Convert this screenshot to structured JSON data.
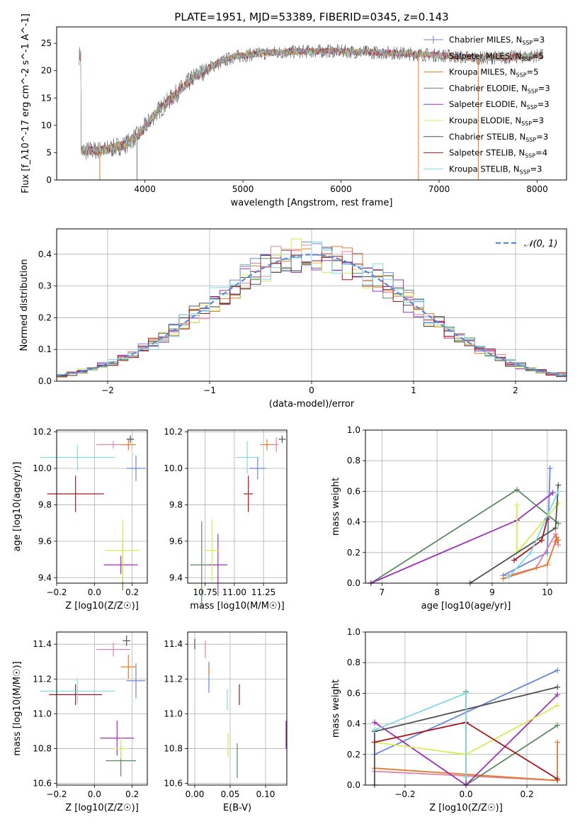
{
  "figure": {
    "title": "PLATE=1951, MJD=53389, FIBERID=0345, z=0.143"
  },
  "models": [
    {
      "name": "Chabrier MILES, N$_{SSP}$=3",
      "label": "Chabrier MILES, N",
      "nssp": "=3",
      "color": "#6a86d8"
    },
    {
      "name": "Salpeter MILES, N$_{SSP}$=5",
      "label": "Salpeter MILES, N",
      "nssp": "=5",
      "color": "#e47fa0"
    },
    {
      "name": "Kroupa MILES, N$_{SSP}$=5",
      "label": "Kroupa MILES, N",
      "nssp": "=5",
      "color": "#e07b2c"
    },
    {
      "name": "Chabrier ELODIE, N$_{SSP}$=3",
      "label": "Chabrier ELODIE, N",
      "nssp": "=3",
      "color": "#5a8a62"
    },
    {
      "name": "Salpeter ELODIE, N$_{SSP}$=3",
      "label": "Salpeter ELODIE, N",
      "nssp": "=3",
      "color": "#9b30b8"
    },
    {
      "name": "Kroupa ELODIE, N$_{SSP}$=3",
      "label": "Kroupa ELODIE, N",
      "nssp": "=3",
      "color": "#d6ec55"
    },
    {
      "name": "Chabrier STELIB, N$_{SSP}$=3",
      "label": "Chabrier STELIB, N",
      "nssp": "=3",
      "color": "#505050"
    },
    {
      "name": "Salpeter STELIB, N$_{SSP}$=4",
      "label": "Salpeter STELIB, N",
      "nssp": "=4",
      "color": "#a8161a"
    },
    {
      "name": "Kroupa STELIB, N$_{SSP}$=3",
      "label": "Kroupa STELIB, N",
      "nssp": "=3",
      "color": "#7fd8e3"
    }
  ],
  "chart_data": [
    {
      "id": "spectrum",
      "type": "line",
      "title": "PLATE=1951, MJD=53389, FIBERID=0345, z=0.143",
      "xlabel": "wavelength [Angstrom, rest frame]",
      "ylabel": "Flux [f_λ10^-17 erg cm^-2 s^-1 A^-1]",
      "xlim": [
        3100,
        8300
      ],
      "ylim": [
        0,
        28
      ],
      "xticks": [
        "4000",
        "5000",
        "6000",
        "7000",
        "8000"
      ],
      "yticks": [
        "0",
        "5",
        "10",
        "15",
        "20",
        "25"
      ],
      "grid": false,
      "legend": "top-right",
      "continuum_points": [
        [
          3350,
          5.3
        ],
        [
          3600,
          5.5
        ],
        [
          3800,
          6.5
        ],
        [
          3950,
          8.5
        ],
        [
          4100,
          12
        ],
        [
          4300,
          15.5
        ],
        [
          4500,
          18.8
        ],
        [
          4700,
          21
        ],
        [
          4900,
          22.5
        ],
        [
          5100,
          23
        ],
        [
          5300,
          23.3
        ],
        [
          5600,
          23.5
        ],
        [
          5900,
          23.6
        ],
        [
          6200,
          23.4
        ],
        [
          6600,
          23.2
        ],
        [
          7000,
          22.8
        ],
        [
          7400,
          22.3
        ],
        [
          7800,
          22.5
        ],
        [
          8050,
          22.8
        ]
      ]
    },
    {
      "id": "residuals",
      "type": "line",
      "xlabel": "(data-model)/error",
      "ylabel": "Normed distribution",
      "xlim": [
        -2.5,
        2.5
      ],
      "ylim": [
        0,
        0.48
      ],
      "xticks": [
        "−2",
        "−1",
        "0",
        "1",
        "2"
      ],
      "yticks": [
        "0.0",
        "0.1",
        "0.2",
        "0.3",
        "0.4"
      ],
      "grid": true,
      "legend": "top-right",
      "reference_label": "𝒩(0, 1)"
    },
    {
      "id": "age-vs-Z",
      "type": "scatter",
      "xlabel": "Z [log10(Z/Z☉)]",
      "ylabel": "age  [log10(age/yr)]",
      "xlim": [
        -0.2,
        0.28
      ],
      "ylim": [
        9.37,
        10.21
      ],
      "xticks": [
        "−0.2",
        "0.0",
        "0.2"
      ],
      "yticks": [
        "9.4",
        "9.6",
        "9.8",
        "10.0",
        "10.2"
      ],
      "grid": true,
      "points": [
        {
          "x": 0.22,
          "y": 10.0,
          "xerr": 0.05,
          "yerr": 0.07
        },
        {
          "x": 0.1,
          "y": 10.13,
          "xerr": 0.09,
          "yerr": 0.02
        },
        {
          "x": 0.18,
          "y": 10.13,
          "xerr": 0.04,
          "yerr": 0.03
        },
        {
          "x": 0.15,
          "y": 9.47,
          "xerr": 0.01,
          "yerr": 0.14
        },
        {
          "x": 0.14,
          "y": 9.47,
          "xerr": 0.09,
          "yerr": 0.05
        },
        {
          "x": 0.15,
          "y": 9.55,
          "xerr": 0.09,
          "yerr": 0.17
        },
        {
          "x": 0.19,
          "y": 10.16,
          "xerr": 0.02,
          "yerr": 0.02
        },
        {
          "x": -0.1,
          "y": 9.86,
          "xerr": 0.15,
          "yerr": 0.1
        },
        {
          "x": -0.09,
          "y": 10.06,
          "xerr": 0.2,
          "yerr": 0.07
        }
      ]
    },
    {
      "id": "age-vs-mass",
      "type": "scatter",
      "xlabel": "mass [log10(M/M☉)]",
      "ylabel": "",
      "xlim": [
        10.6,
        11.45
      ],
      "ylim": [
        9.37,
        10.21
      ],
      "xticks": [
        "10.75",
        "11.00",
        "11.25"
      ],
      "yticks": [
        "9.4",
        "9.6",
        "9.8",
        "10.0",
        "10.2"
      ],
      "grid": true,
      "points": [
        {
          "x": 11.2,
          "y": 10.0,
          "xerr": 0.07,
          "yerr": 0.06
        },
        {
          "x": 11.36,
          "y": 10.13,
          "xerr": 0.02,
          "yerr": 0.04
        },
        {
          "x": 11.28,
          "y": 10.13,
          "xerr": 0.06,
          "yerr": 0.03
        },
        {
          "x": 10.72,
          "y": 9.47,
          "xerr": 0.1,
          "yerr": 0.24
        },
        {
          "x": 10.86,
          "y": 9.47,
          "xerr": 0.08,
          "yerr": 0.17
        },
        {
          "x": 10.81,
          "y": 9.55,
          "xerr": 0.06,
          "yerr": 0.17
        },
        {
          "x": 11.41,
          "y": 10.16,
          "xerr": 0.03,
          "yerr": 0.02
        },
        {
          "x": 11.12,
          "y": 9.86,
          "xerr": 0.04,
          "yerr": 0.1
        },
        {
          "x": 11.11,
          "y": 10.06,
          "xerr": 0.1,
          "yerr": 0.09
        }
      ]
    },
    {
      "id": "weight-vs-age",
      "type": "line",
      "xlabel": "age  [log10(age/yr)]",
      "ylabel": "mass weight",
      "xlim": [
        6.7,
        10.35
      ],
      "ylim": [
        0,
        1.0
      ],
      "xticks": [
        "7",
        "8",
        "9",
        "10"
      ],
      "yticks": [
        "0.0",
        "0.2",
        "0.4",
        "0.6",
        "0.8",
        "1.0"
      ],
      "grid": true,
      "series": [
        {
          "values": [
            [
              9.2,
              0.05
            ],
            [
              10.0,
              0.2
            ],
            [
              10.05,
              0.75
            ]
          ]
        },
        {
          "values": [
            [
              9.3,
              0.05
            ],
            [
              9.8,
              0.1
            ],
            [
              10.15,
              0.32
            ],
            [
              10.17,
              0.28
            ],
            [
              10.2,
              0.25
            ]
          ]
        },
        {
          "values": [
            [
              9.2,
              0.03
            ],
            [
              10.0,
              0.12
            ],
            [
              10.15,
              0.27
            ],
            [
              10.17,
              0.3
            ],
            [
              10.2,
              0.28
            ]
          ]
        },
        {
          "values": [
            [
              6.8,
              0.0
            ],
            [
              9.45,
              0.61
            ],
            [
              10.2,
              0.39
            ]
          ]
        },
        {
          "values": [
            [
              6.8,
              0.0
            ],
            [
              9.45,
              0.41
            ],
            [
              10.1,
              0.59
            ]
          ]
        },
        {
          "values": [
            [
              9.45,
              0.51
            ],
            [
              9.45,
              0.2
            ],
            [
              10.2,
              0.52
            ]
          ]
        },
        {
          "values": [
            [
              8.6,
              0.0
            ],
            [
              10.15,
              0.36
            ],
            [
              10.2,
              0.64
            ]
          ]
        },
        {
          "values": [
            [
              9.4,
              0.15
            ],
            [
              9.9,
              0.28
            ],
            [
              10.0,
              0.42
            ]
          ]
        },
        {
          "values": [
            [
              9.3,
              0.04
            ],
            [
              9.7,
              0.2
            ],
            [
              10.2,
              0.6
            ]
          ]
        }
      ]
    },
    {
      "id": "mass-vs-Z",
      "type": "scatter",
      "xlabel": "Z [log10(Z/Z☉)]",
      "ylabel": "mass [log10(M/M☉)]",
      "xlim": [
        -0.2,
        0.28
      ],
      "ylim": [
        10.59,
        11.47
      ],
      "xticks": [
        "−0.2",
        "0.0",
        "0.2"
      ],
      "yticks": [
        "10.6",
        "10.8",
        "11.0",
        "11.2",
        "11.4"
      ],
      "grid": true,
      "points": [
        {
          "x": 0.22,
          "y": 11.19,
          "xerr": 0.05,
          "yerr": 0.1
        },
        {
          "x": 0.1,
          "y": 11.37,
          "xerr": 0.09,
          "yerr": 0.04
        },
        {
          "x": 0.18,
          "y": 11.27,
          "xerr": 0.04,
          "yerr": 0.07
        },
        {
          "x": 0.14,
          "y": 10.73,
          "xerr": 0.08,
          "yerr": 0.09
        },
        {
          "x": 0.12,
          "y": 10.86,
          "xerr": 0.09,
          "yerr": 0.1
        },
        {
          "x": 0.14,
          "y": 10.8,
          "xerr": 0.04,
          "yerr": 0.06
        },
        {
          "x": 0.17,
          "y": 11.42,
          "xerr": 0.02,
          "yerr": 0.03
        },
        {
          "x": -0.1,
          "y": 11.11,
          "xerr": 0.14,
          "yerr": 0.06
        },
        {
          "x": -0.09,
          "y": 11.13,
          "xerr": 0.2,
          "yerr": 0.07
        }
      ]
    },
    {
      "id": "mass-vs-EBV",
      "type": "scatter",
      "xlabel": "E(B-V)",
      "ylabel": "",
      "xlim": [
        -0.01,
        0.13
      ],
      "ylim": [
        10.59,
        11.47
      ],
      "xticks": [
        "0.00",
        "0.05",
        "0.10"
      ],
      "yticks": [
        "10.6",
        "10.8",
        "11.0",
        "11.2",
        "11.4"
      ],
      "grid": true,
      "points": [
        {
          "x": 0.02,
          "y": 11.21,
          "xerr": 0,
          "yerr": 0.09
        },
        {
          "x": 0.015,
          "y": 11.37,
          "xerr": 0,
          "yerr": 0.05
        },
        {
          "x": 0.02,
          "y": 11.25,
          "xerr": 0,
          "yerr": 0.03
        },
        {
          "x": 0.06,
          "y": 10.73,
          "xerr": 0,
          "yerr": 0.1
        },
        {
          "x": 0.129,
          "y": 10.88,
          "xerr": 0,
          "yerr": 0.08
        },
        {
          "x": 0.047,
          "y": 10.82,
          "xerr": 0,
          "yerr": 0.07
        },
        {
          "x": 0.0,
          "y": 11.4,
          "xerr": 0,
          "yerr": 0.03
        },
        {
          "x": 0.063,
          "y": 11.11,
          "xerr": 0,
          "yerr": 0.06
        },
        {
          "x": 0.046,
          "y": 11.08,
          "xerr": 0,
          "yerr": 0.06
        }
      ]
    },
    {
      "id": "weight-vs-Z",
      "type": "line",
      "xlabel": "Z [log10(Z/Z☉)]",
      "ylabel": "mass weight",
      "xlim": [
        -0.33,
        0.33
      ],
      "ylim": [
        0,
        1.0
      ],
      "xticks": [
        "−0.2",
        "0.0",
        "0.2"
      ],
      "yticks": [
        "0.0",
        "0.2",
        "0.4",
        "0.6",
        "0.8",
        "1.0"
      ],
      "grid": true,
      "series": [
        {
          "values": [
            [
              -0.3,
              0.2
            ],
            [
              0.3,
              0.75
            ]
          ]
        },
        {
          "values": [
            [
              -0.3,
              0.09
            ],
            [
              0.0,
              0.06
            ],
            [
              0.3,
              0.03
            ]
          ]
        },
        {
          "values": [
            [
              -0.3,
              0.11
            ],
            [
              0.3,
              0.03
            ],
            [
              0.3,
              0.28
            ]
          ]
        },
        {
          "values": [
            [
              0.0,
              0.61
            ],
            [
              0.0,
              0.0
            ],
            [
              0.3,
              0.39
            ]
          ]
        },
        {
          "values": [
            [
              -0.3,
              0.41
            ],
            [
              0.0,
              0.0
            ],
            [
              0.3,
              0.59
            ]
          ]
        },
        {
          "values": [
            [
              -0.3,
              0.28
            ],
            [
              0.0,
              0.2
            ],
            [
              0.3,
              0.52
            ]
          ]
        },
        {
          "values": [
            [
              -0.3,
              0.0
            ],
            [
              -0.3,
              0.35
            ],
            [
              0.3,
              0.64
            ]
          ]
        },
        {
          "values": [
            [
              -0.3,
              0.28
            ],
            [
              0.0,
              0.41
            ],
            [
              0.3,
              0.04
            ]
          ]
        },
        {
          "values": [
            [
              -0.3,
              0.36
            ],
            [
              0.0,
              0.6
            ],
            [
              0.0,
              0.05
            ]
          ]
        }
      ]
    }
  ]
}
